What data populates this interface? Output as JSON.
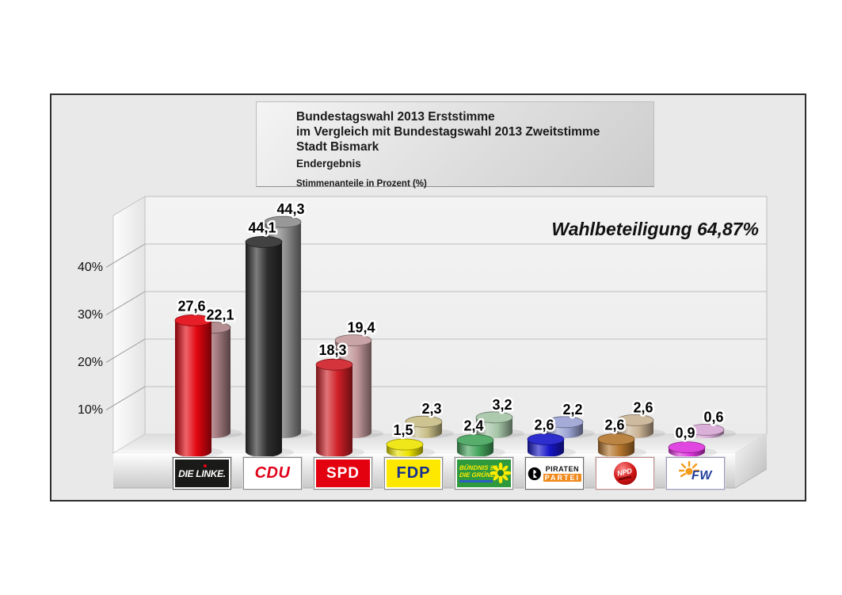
{
  "header": {
    "line1": "Bundestagswahl 2013 Erststimme",
    "line2": "im Vergleich mit Bundestagswahl 2013 Zweitstimme",
    "line3": "Stadt Bismark",
    "line4": "Endergebnis",
    "line5": "Stimmenanteile in Prozent (%)"
  },
  "chart_data": {
    "type": "bar",
    "style": "3d-cylinder-pairs",
    "title": "Bundestagswahl 2013 Erststimme im Vergleich mit Bundestagswahl 2013 Zweitstimme",
    "subtitle": "Stadt Bismark — Endergebnis",
    "unit": "Stimmenanteile in Prozent (%)",
    "annotation": "Wahlbeteiligung 64,87%",
    "categories": [
      "DIE LINKE",
      "CDU",
      "SPD",
      "FDP",
      "BÜNDNIS 90/DIE GRÜNEN",
      "PIRATENPARTEI",
      "NPD",
      "FW"
    ],
    "series": [
      {
        "name": "Erststimme",
        "values": [
          27.6,
          44.1,
          18.3,
          1.5,
          2.4,
          2.6,
          2.6,
          0.9
        ],
        "labels": [
          "27,6",
          "44,1",
          "18,3",
          "1,5",
          "2,4",
          "2,6",
          "2,6",
          "0,9"
        ],
        "colors": [
          "#e2050f",
          "#2d2d2d",
          "#cf1f26",
          "#ede400",
          "#44a45c",
          "#1717c8",
          "#b5762d",
          "#dd33dd"
        ]
      },
      {
        "name": "Zweitstimme",
        "values": [
          22.1,
          44.3,
          19.4,
          2.3,
          3.2,
          2.2,
          2.6,
          0.6
        ],
        "labels": [
          "22,1",
          "44,3",
          "19,4",
          "2,3",
          "3,2",
          "2,2",
          "2,6",
          "0,6"
        ],
        "colors": [
          "#aa8084",
          "#8c8c8c",
          "#c39a9c",
          "#c8bd86",
          "#a4c4a6",
          "#9aa2d2",
          "#c9b294",
          "#d6a6d4"
        ]
      }
    ],
    "y_axis": {
      "tick_labels": [
        "10%",
        "20%",
        "30%",
        "40%"
      ],
      "tick_values": [
        10,
        20,
        30,
        40
      ],
      "range": [
        0,
        50
      ],
      "unit": "%"
    },
    "legend": false,
    "grid": true
  },
  "logos": {
    "linke": {
      "text": "DIE LINKE.",
      "bg": "#1a1a18",
      "fg": "#ffffff",
      "accent": "#e60012",
      "border": "#5a5a5a"
    },
    "cdu": {
      "text": "CDU",
      "bg": "#ffffff",
      "fg": "#e1001a",
      "border": "#8a8a8a"
    },
    "spd": {
      "text": "SPD",
      "bg": "#e3000f",
      "fg": "#ffffff",
      "border": "#8a8a8a"
    },
    "fdp": {
      "text": "FDP",
      "bg": "#ffe800",
      "fg": "#15308f",
      "border": "#8a8a8a"
    },
    "gruene": {
      "line1": "BÜNDNIS 90",
      "line2": "DIE GRÜNEN",
      "bg": "#2f9a3d",
      "fg": "#ffec00",
      "accent": "#2b5fc2",
      "border": "#8a8a8a"
    },
    "piraten": {
      "line1": "PIRATEN",
      "line2": "PARTEI",
      "bg": "#ffffff",
      "fg": "#111111",
      "accent": "#f08a1d",
      "border": "#6a6a6a"
    },
    "npd": {
      "text": "NPD",
      "bg": "#ffffff",
      "fg": "#ffffff",
      "accent": "#cc1111",
      "border": "#c68c8c"
    },
    "fw": {
      "text": "FW",
      "bg": "#ffffff",
      "fg": "#23409a",
      "accent": "#f59a1a",
      "border": "#9a9ac2"
    }
  }
}
